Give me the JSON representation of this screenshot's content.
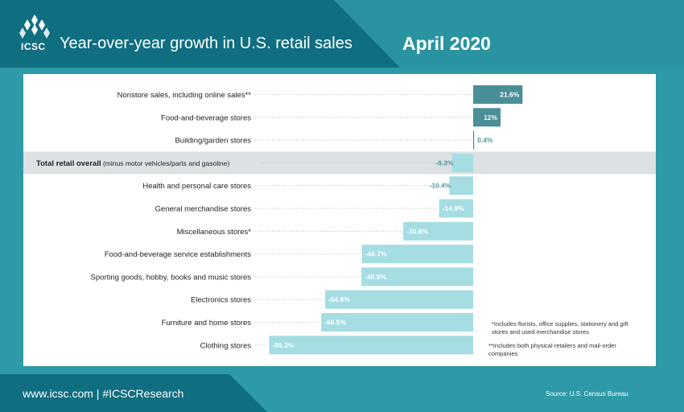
{
  "header": {
    "logo_text": "ICSC",
    "title": "Year-over-year growth in U.S. retail sales",
    "date": "April 2020"
  },
  "chart_data": {
    "type": "bar",
    "orientation": "horizontal",
    "title": "Year-over-year growth in U.S. retail sales",
    "subtitle": "April 2020",
    "categories": [
      "Nonstore sales, including online sales**",
      "Food-and-beverage stores",
      "Building/garden stores",
      "Total retail overall",
      "Health and personal care stores",
      "General merchandise stores",
      "Miscellaneous stores*",
      "Food-and-beverage service establishments",
      "Sporting goods, hobby, books and music stores",
      "Electronics stores",
      "Furniture and home stores",
      "Clothing stores"
    ],
    "category_notes": [
      "",
      "",
      "",
      "(minus motor vehicles/parts and gasoline)",
      "",
      "",
      "",
      "",
      "",
      "",
      "",
      ""
    ],
    "values": [
      21.6,
      12,
      0.4,
      -9.3,
      -10.4,
      -14.9,
      -30.6,
      -48.7,
      -48.9,
      -64.8,
      -66.5,
      -89.3
    ],
    "value_labels": [
      "21.6%",
      "12%",
      "0.4%",
      "-9.3%",
      "-10.4%",
      "-14.9%",
      "-30.6%",
      "-48.7%",
      "-48.9%",
      "-64.8%",
      "-66.5%",
      "-89.3%"
    ],
    "highlight_category": "Total retail overall",
    "xlim": [
      -90,
      25
    ],
    "unit": "%",
    "colors": {
      "positive": "#4a8f98",
      "negative": "#a5dde2",
      "highlight_row": "#dde1e3",
      "value_positive_text": "#ffffff",
      "value_negative_text": "#4f9ba3"
    }
  },
  "footnotes": [
    "*Includes florists, office supplies, stationery and gift stores and used merchandise stores",
    "**Includes both physical retailers and mail-order companies"
  ],
  "footer": {
    "links": "www.icsc.com  |  #ICSCResearch",
    "source": "Source: U.S. Census Bureau"
  }
}
